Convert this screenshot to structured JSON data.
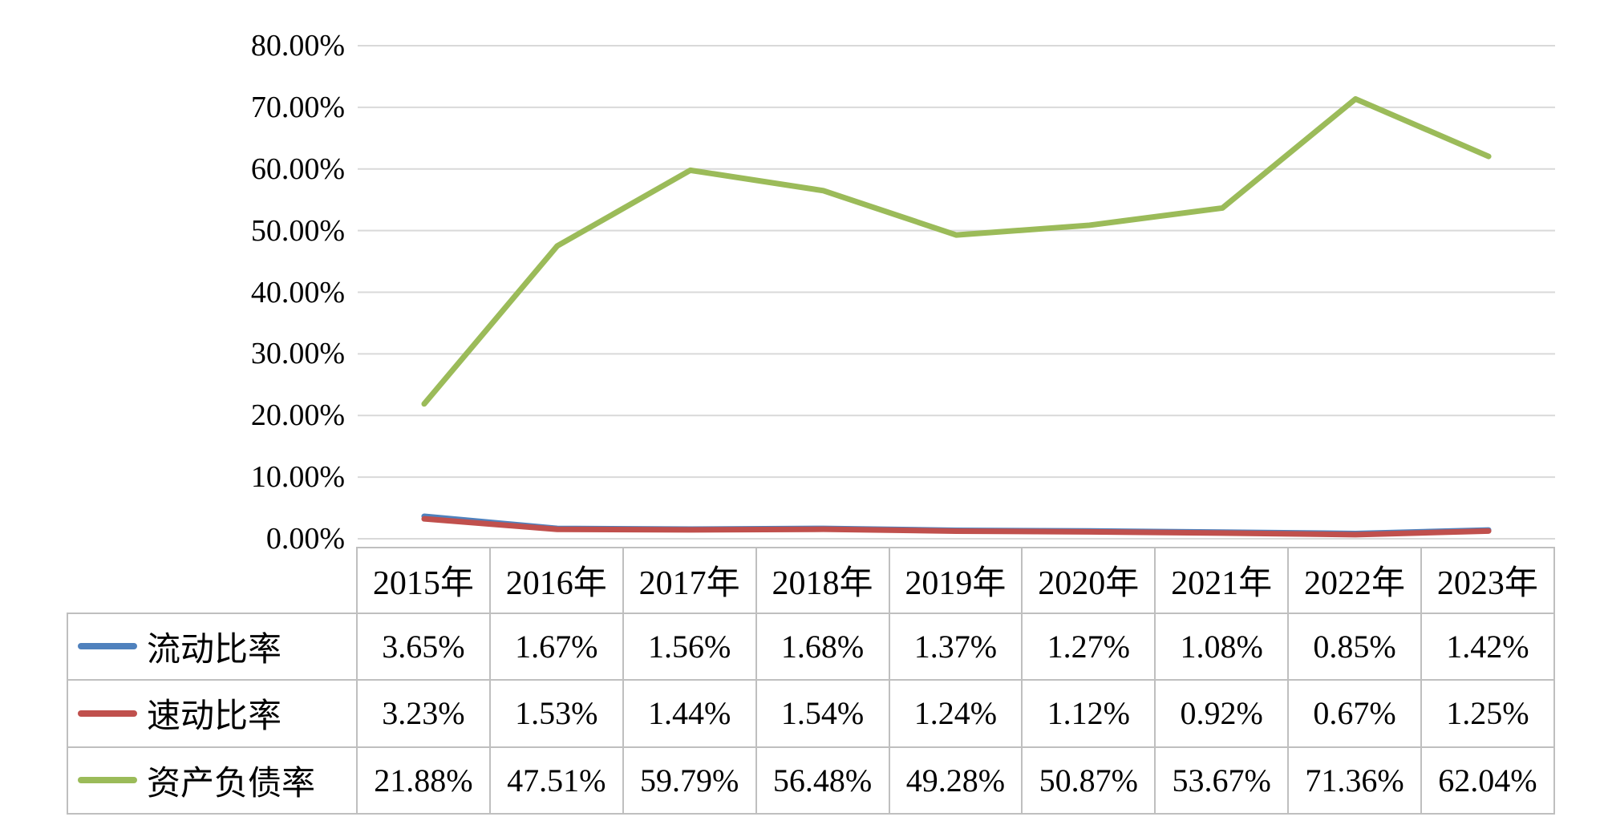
{
  "chart_data": {
    "type": "line",
    "title": "",
    "xlabel": "",
    "ylabel": "",
    "categories": [
      "2015年",
      "2016年",
      "2017年",
      "2018年",
      "2019年",
      "2020年",
      "2021年",
      "2022年",
      "2023年"
    ],
    "series": [
      {
        "id": "current-ratio",
        "name": "流动比率",
        "color": "#4F81BD",
        "values": [
          3.65,
          1.67,
          1.56,
          1.68,
          1.37,
          1.27,
          1.08,
          0.85,
          1.42
        ]
      },
      {
        "id": "quick-ratio",
        "name": "速动比率",
        "color": "#C0504D",
        "values": [
          3.23,
          1.53,
          1.44,
          1.54,
          1.24,
          1.12,
          0.92,
          0.67,
          1.25
        ]
      },
      {
        "id": "debt-to-asset-ratio",
        "name": "资产负债率",
        "color": "#9BBB59",
        "values": [
          21.88,
          47.51,
          59.79,
          56.48,
          49.28,
          50.87,
          53.67,
          71.36,
          62.04
        ]
      }
    ],
    "y_axis": {
      "min": 0,
      "max": 80,
      "step": 10,
      "tick_labels": [
        "0.00%",
        "10.00%",
        "20.00%",
        "30.00%",
        "40.00%",
        "50.00%",
        "60.00%",
        "70.00%",
        "80.00%"
      ]
    },
    "value_format": "percent-2dp",
    "grid": true,
    "legend_position": "data-table-left-column"
  },
  "colors": {
    "background": "#ffffff",
    "text": "#000000",
    "gridline": "#d9d9d9",
    "table_border": "#bfbfbf"
  }
}
